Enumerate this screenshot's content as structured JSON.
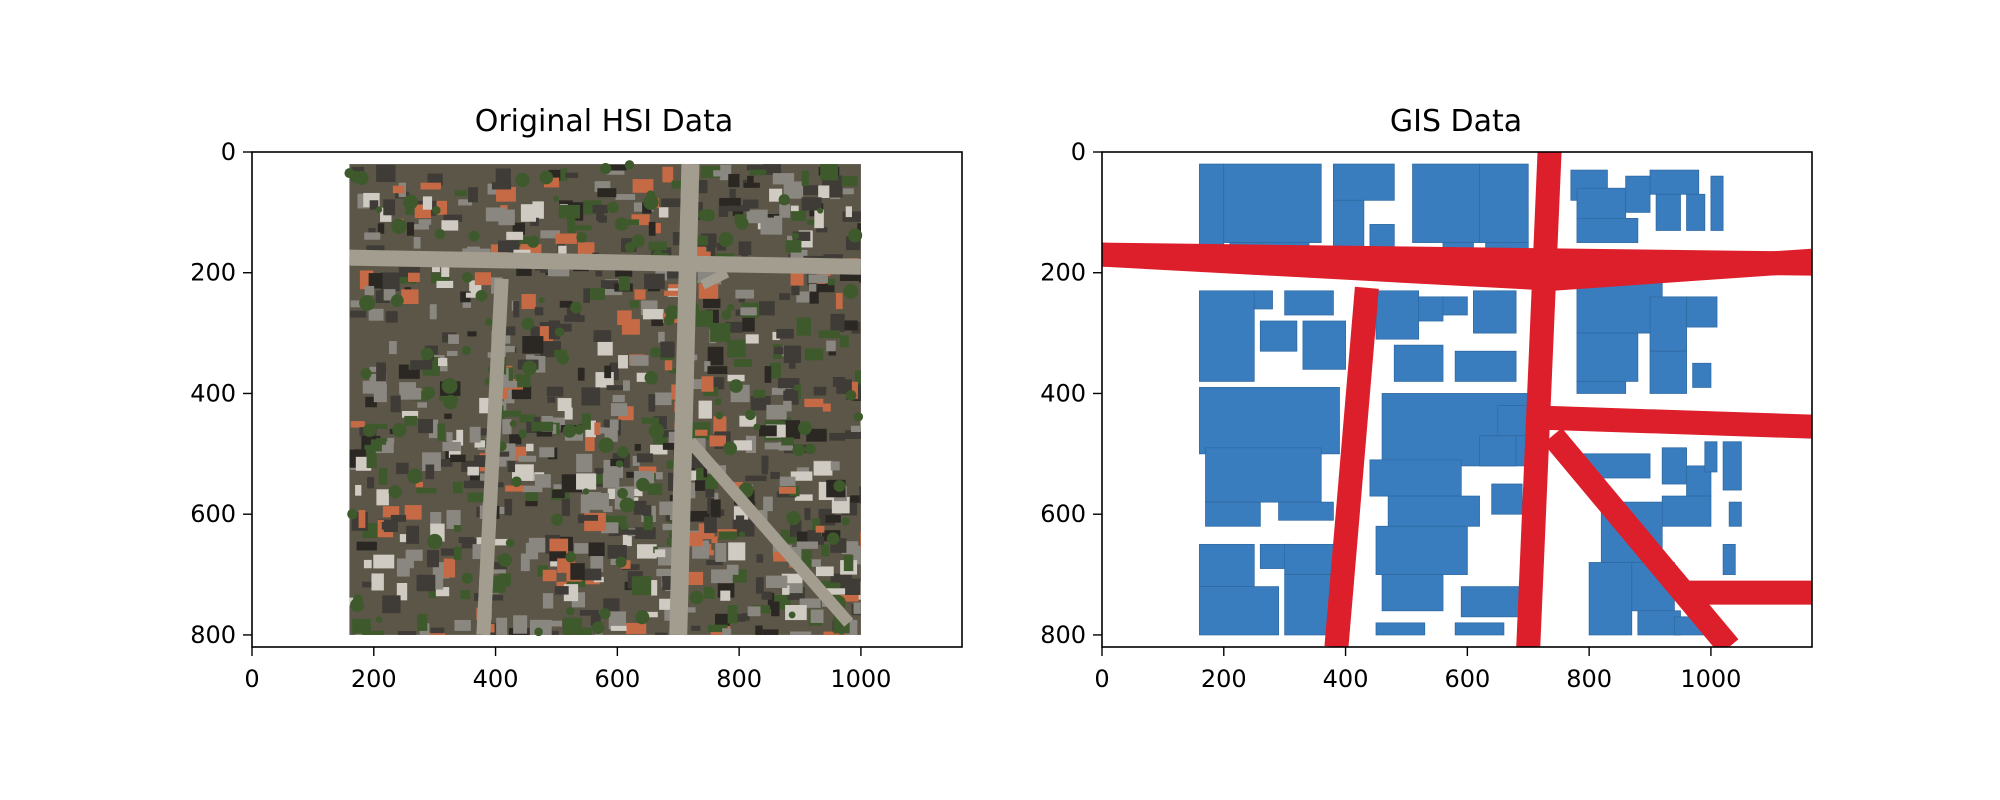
{
  "chart_data": [
    {
      "type": "image",
      "title": "Original HSI Data",
      "xlim": [
        0,
        1166
      ],
      "ylim": [
        820,
        0
      ],
      "xticks": [
        0,
        200,
        400,
        600,
        800,
        1000
      ],
      "yticks": [
        0,
        200,
        400,
        600,
        800
      ],
      "image_extent": {
        "x": [
          160,
          1000
        ],
        "y": [
          20,
          800
        ]
      },
      "colors": {
        "ground": "#5c5648",
        "street": "#a39d90",
        "roof_dark": "#3f3b36",
        "roof_gray": "#8a8680",
        "roof_orange": "#c56a45",
        "roof_light": "#cfcac2",
        "vegetation": "#3e5a2c",
        "shadow": "#2b2824"
      }
    },
    {
      "type": "map",
      "title": "GIS Data",
      "xlim": [
        0,
        1166
      ],
      "ylim": [
        820,
        0
      ],
      "xticks": [
        0,
        200,
        400,
        600,
        800,
        1000
      ],
      "yticks": [
        0,
        200,
        400,
        600,
        800
      ],
      "layers": [
        {
          "name": "buildings",
          "color": "#3a7dbf"
        },
        {
          "name": "roads",
          "color": "#dc1f2b"
        }
      ],
      "roads": [
        [
          [
            0,
            170
          ],
          [
            1166,
            185
          ]
        ],
        [
          [
            0,
            170
          ],
          [
            740,
            210
          ]
        ],
        [
          [
            740,
            210
          ],
          [
            1166,
            180
          ]
        ],
        [
          [
            435,
            225
          ],
          [
            385,
            820
          ]
        ],
        [
          [
            735,
            0
          ],
          [
            700,
            820
          ]
        ],
        [
          [
            720,
            440
          ],
          [
            1166,
            455
          ]
        ],
        [
          [
            740,
            470
          ],
          [
            1030,
            820
          ]
        ],
        [
          [
            950,
            730
          ],
          [
            1166,
            730
          ]
        ]
      ],
      "buildings": [
        [
          160,
          20,
          200,
          180
        ],
        [
          200,
          20,
          360,
          150
        ],
        [
          210,
          150,
          340,
          175
        ],
        [
          380,
          20,
          480,
          80
        ],
        [
          380,
          80,
          430,
          160
        ],
        [
          440,
          120,
          480,
          180
        ],
        [
          510,
          20,
          620,
          150
        ],
        [
          560,
          150,
          610,
          180
        ],
        [
          620,
          20,
          700,
          150
        ],
        [
          630,
          150,
          700,
          180
        ],
        [
          770,
          30,
          830,
          80
        ],
        [
          780,
          60,
          860,
          110
        ],
        [
          780,
          110,
          880,
          150
        ],
        [
          860,
          40,
          900,
          100
        ],
        [
          900,
          30,
          980,
          70
        ],
        [
          910,
          70,
          950,
          130
        ],
        [
          960,
          70,
          990,
          130
        ],
        [
          1000,
          40,
          1020,
          130
        ],
        [
          160,
          230,
          250,
          380
        ],
        [
          250,
          230,
          280,
          260
        ],
        [
          300,
          230,
          380,
          270
        ],
        [
          260,
          280,
          320,
          330
        ],
        [
          330,
          280,
          400,
          360
        ],
        [
          160,
          390,
          390,
          500
        ],
        [
          170,
          490,
          360,
          580
        ],
        [
          170,
          580,
          260,
          620
        ],
        [
          290,
          580,
          380,
          610
        ],
        [
          160,
          650,
          250,
          720
        ],
        [
          260,
          650,
          310,
          690
        ],
        [
          160,
          720,
          290,
          800
        ],
        [
          300,
          700,
          380,
          800
        ],
        [
          300,
          650,
          380,
          700
        ],
        [
          450,
          230,
          520,
          310
        ],
        [
          520,
          240,
          560,
          280
        ],
        [
          560,
          240,
          600,
          270
        ],
        [
          610,
          230,
          680,
          300
        ],
        [
          480,
          320,
          560,
          380
        ],
        [
          580,
          330,
          680,
          380
        ],
        [
          460,
          400,
          700,
          520
        ],
        [
          440,
          510,
          590,
          570
        ],
        [
          470,
          570,
          620,
          620
        ],
        [
          450,
          620,
          600,
          700
        ],
        [
          460,
          700,
          560,
          760
        ],
        [
          590,
          720,
          690,
          770
        ],
        [
          450,
          780,
          530,
          800
        ],
        [
          580,
          780,
          660,
          800
        ],
        [
          650,
          420,
          700,
          470
        ],
        [
          620,
          470,
          680,
          520
        ],
        [
          640,
          550,
          690,
          600
        ],
        [
          780,
          200,
          920,
          300
        ],
        [
          780,
          300,
          880,
          380
        ],
        [
          780,
          380,
          860,
          400
        ],
        [
          900,
          240,
          960,
          330
        ],
        [
          960,
          240,
          1010,
          290
        ],
        [
          900,
          330,
          960,
          400
        ],
        [
          970,
          350,
          1000,
          390
        ],
        [
          790,
          500,
          900,
          540
        ],
        [
          920,
          490,
          960,
          550
        ],
        [
          960,
          520,
          1000,
          570
        ],
        [
          990,
          480,
          1010,
          530
        ],
        [
          1020,
          480,
          1050,
          560
        ],
        [
          920,
          570,
          1000,
          620
        ],
        [
          1030,
          580,
          1050,
          620
        ],
        [
          1020,
          650,
          1040,
          700
        ],
        [
          820,
          580,
          920,
          680
        ],
        [
          870,
          680,
          940,
          760
        ],
        [
          800,
          680,
          870,
          800
        ],
        [
          880,
          760,
          950,
          800
        ],
        [
          940,
          770,
          990,
          800
        ]
      ]
    }
  ]
}
